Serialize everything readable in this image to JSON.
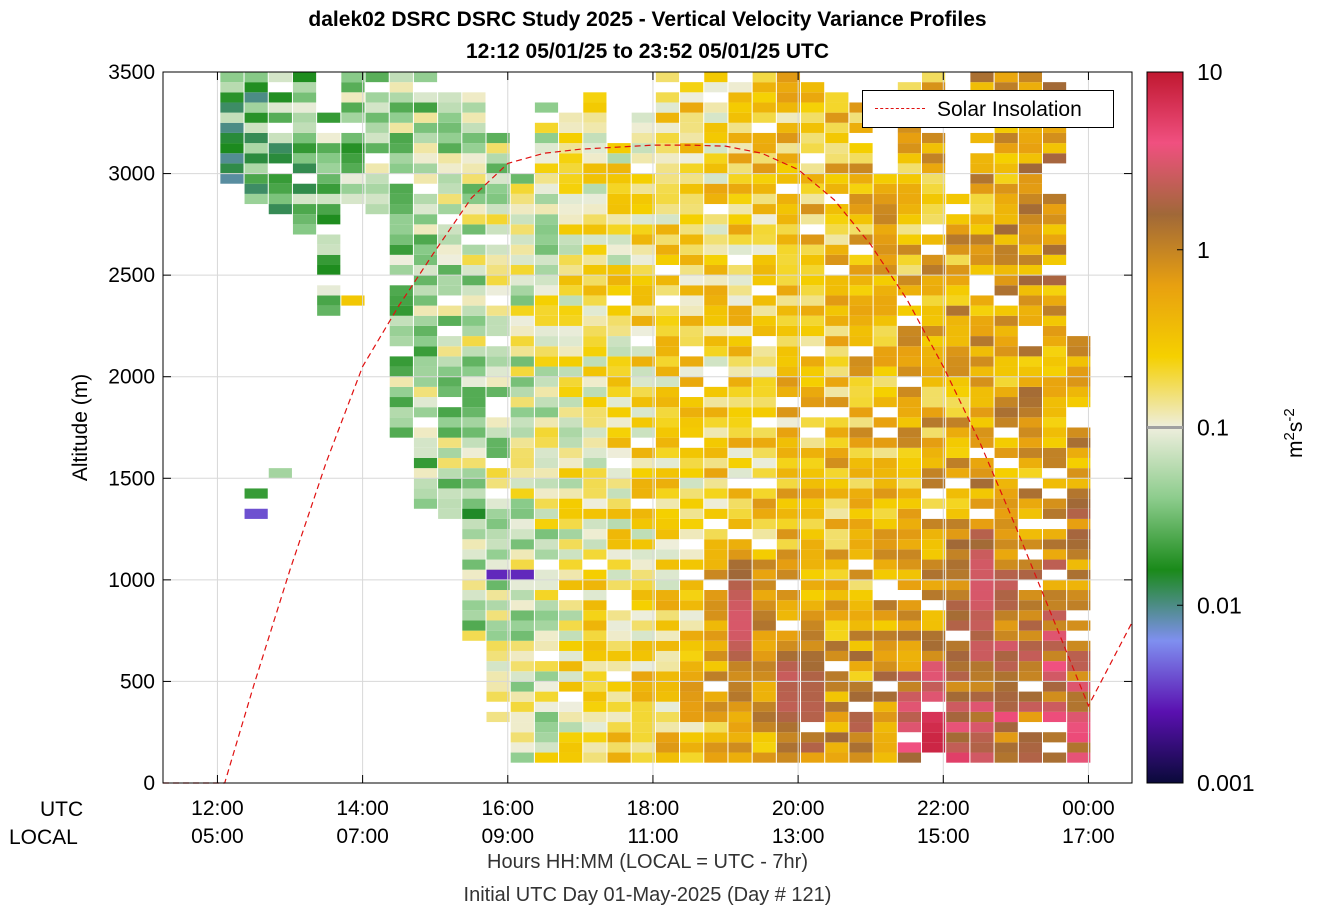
{
  "title_line1": "dalek02 DSRC DSRC Study 2025 - Vertical Velocity Variance Profiles",
  "title_line2": "12:12 05/01/25 to 23:52 05/01/25  UTC",
  "xlabel": "Hours HH:MM  (LOCAL = UTC - 7hr)",
  "xlabel2": "Initial UTC Day 01-May-2025 (Day # 121)",
  "row_label_utc": "UTC",
  "row_label_local": "LOCAL",
  "legend_label": "Solar Insolation",
  "colorbar_label": "m^2s^-2",
  "chart_data": {
    "type": "heatmap",
    "ylabel": "Altitude (m)",
    "ylim": [
      0,
      3500
    ],
    "xlim_utc_hours": [
      11.25,
      24.6
    ],
    "y_ticks": [
      0,
      500,
      1000,
      1500,
      2000,
      2500,
      3000,
      3500
    ],
    "y_tick_labels": [
      "0",
      "500",
      "1000",
      "1500",
      "2000",
      "2500",
      "3000",
      "3500"
    ],
    "x_ticks_utc_hours": [
      12,
      14,
      16,
      18,
      20,
      22,
      24
    ],
    "x_tick_labels_utc": [
      "12:00",
      "14:00",
      "16:00",
      "18:00",
      "20:00",
      "22:00",
      "00:00"
    ],
    "x_tick_labels_local": [
      "05:00",
      "07:00",
      "09:00",
      "11:00",
      "13:00",
      "15:00",
      "17:00"
    ],
    "grid": true,
    "legend_position": "top-right",
    "colorbar": {
      "scale": "log",
      "range": [
        0.001,
        10
      ],
      "tick_values": [
        0.001,
        0.01,
        0.1,
        1,
        10
      ],
      "tick_labels": [
        "0.001",
        "0.01",
        "0.1",
        "1",
        "10"
      ],
      "colors": [
        "#0a0a3a",
        "#5a10b0",
        "#7f8ff0",
        "#1a8a1a",
        "#8ccc8c",
        "#eeeedd",
        "#f5d000",
        "#e8a010",
        "#a06838",
        "#f05080",
        "#c01830"
      ]
    },
    "profile_times_utc": [
      "12:12",
      "12:32",
      "12:52",
      "13:12",
      "13:32",
      "13:52",
      "14:12",
      "14:32",
      "14:52",
      "15:12",
      "15:32",
      "15:52",
      "16:12",
      "16:32",
      "16:52",
      "17:12",
      "17:32",
      "17:52",
      "18:12",
      "18:32",
      "18:52",
      "19:12",
      "19:32",
      "19:52",
      "20:12",
      "20:32",
      "20:52",
      "21:12",
      "21:32",
      "21:52",
      "22:12",
      "22:32",
      "22:52",
      "23:12",
      "23:32",
      "23:52"
    ],
    "vertical_coverage_m": [
      [
        2950,
        3500
      ],
      [
        2800,
        3500
      ],
      [
        2800,
        3500
      ],
      [
        2700,
        3500
      ],
      [
        2300,
        3300
      ],
      [
        2800,
        3500
      ],
      [
        2800,
        3500
      ],
      [
        1700,
        3500
      ],
      [
        1350,
        3500
      ],
      [
        1300,
        3400
      ],
      [
        700,
        3400
      ],
      [
        300,
        3200
      ],
      [
        100,
        3000
      ],
      [
        100,
        3350
      ],
      [
        100,
        3300
      ],
      [
        100,
        3400
      ],
      [
        100,
        3150
      ],
      [
        100,
        3300
      ],
      [
        100,
        3500
      ],
      [
        100,
        3450
      ],
      [
        100,
        3500
      ],
      [
        100,
        3450
      ],
      [
        100,
        3500
      ],
      [
        100,
        3500
      ],
      [
        100,
        3500
      ],
      [
        100,
        3400
      ],
      [
        100,
        3350
      ],
      [
        100,
        3000
      ],
      [
        100,
        3450
      ],
      [
        100,
        3500
      ],
      [
        100,
        2900
      ],
      [
        100,
        3500
      ],
      [
        100,
        3500
      ],
      [
        100,
        3500
      ],
      [
        100,
        3450
      ],
      [
        100,
        2200
      ]
    ],
    "isolated_cells": [
      {
        "time_utc": "12:32",
        "altitude_m": 1300,
        "variance": 0.004
      },
      {
        "time_utc": "12:32",
        "altitude_m": 1400,
        "variance": 0.02
      },
      {
        "time_utc": "12:52",
        "altitude_m": 1500,
        "variance": 0.05
      },
      {
        "time_utc": "13:52",
        "altitude_m": 2350,
        "variance": 0.3
      },
      {
        "time_utc": "15:32",
        "altitude_m": 1300,
        "variance": 0.015
      },
      {
        "time_utc": "15:52",
        "altitude_m": 1000,
        "variance": 0.003
      },
      {
        "time_utc": "16:12",
        "altitude_m": 1000,
        "variance": 0.003
      }
    ],
    "peaks": [
      {
        "time_utc": "19:12",
        "altitude_m": 800,
        "variance": 3
      },
      {
        "time_utc": "20:00",
        "altitude_m": 450,
        "variance": 3
      },
      {
        "time_utc": "21:52",
        "altitude_m": 200,
        "variance": 8
      },
      {
        "time_utc": "22:32",
        "altitude_m": 950,
        "variance": 3
      }
    ],
    "series": [
      {
        "name": "Solar Insolation",
        "style": "red dashed line",
        "x_utc_hours": [
          11.25,
          12.1,
          12.5,
          13.0,
          13.5,
          14.0,
          14.5,
          15.0,
          15.5,
          16.0,
          16.5,
          17.0,
          17.5,
          18.0,
          18.5,
          19.0,
          19.5,
          20.0,
          20.5,
          21.0,
          21.5,
          22.0,
          22.5,
          23.0,
          23.5,
          24.0,
          24.6
        ],
        "y_m": [
          0,
          0,
          480,
          1050,
          1580,
          2050,
          2350,
          2620,
          2880,
          3050,
          3100,
          3120,
          3130,
          3140,
          3140,
          3135,
          3100,
          3020,
          2870,
          2650,
          2380,
          2050,
          1680,
          1260,
          820,
          380,
          790
        ]
      }
    ]
  }
}
